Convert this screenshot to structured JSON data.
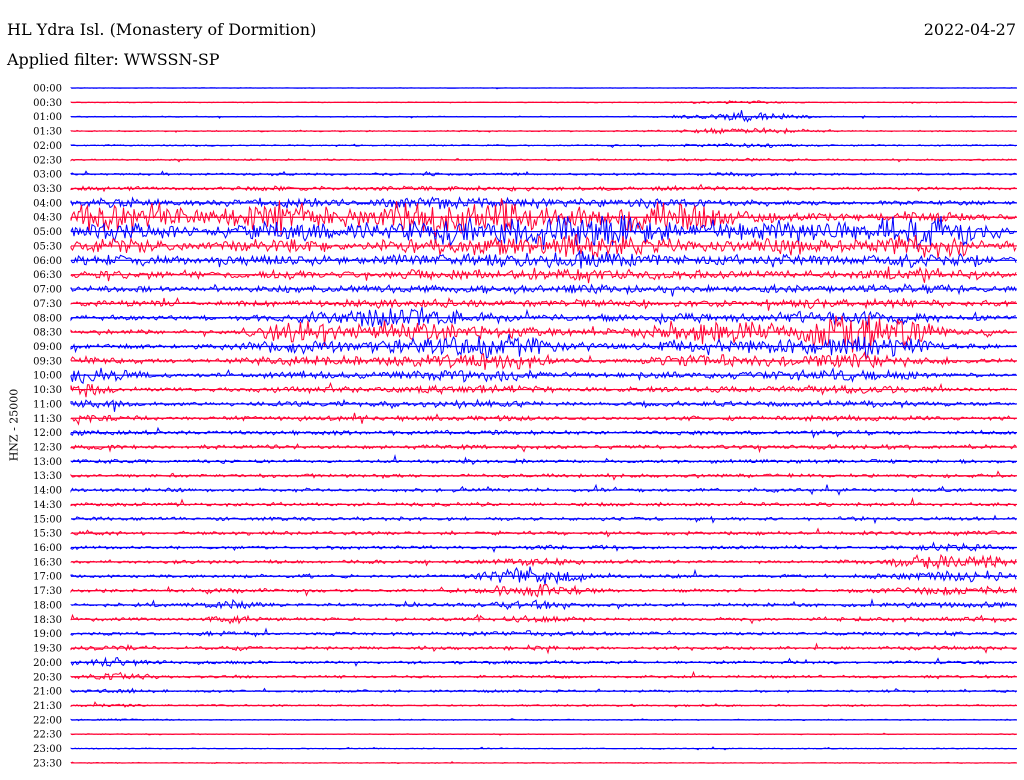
{
  "header": {
    "station": "HL Ydra Isl. (Monastery of Dormition)",
    "filter": "Applied filter: WWSSN-SP",
    "date": "2022-04-27"
  },
  "chart_data": {
    "type": "helicorder",
    "title": "HL Ydra Isl. (Monastery of Dormition)",
    "ylabel": "HNZ - 25000",
    "trace_colors": [
      "#0000ff",
      "#ff0033"
    ],
    "time_labels": [
      "00:00",
      "00:30",
      "01:00",
      "01:30",
      "02:00",
      "02:30",
      "03:00",
      "03:30",
      "04:00",
      "04:30",
      "05:00",
      "05:30",
      "06:00",
      "06:30",
      "07:00",
      "07:30",
      "08:00",
      "08:30",
      "09:00",
      "09:30",
      "10:00",
      "10:30",
      "11:00",
      "11:30",
      "12:00",
      "12:30",
      "13:00",
      "13:30",
      "14:00",
      "14:30",
      "15:00",
      "15:30",
      "16:00",
      "16:30",
      "17:00",
      "17:30",
      "18:00",
      "18:30",
      "19:00",
      "19:30",
      "20:00",
      "20:30",
      "21:00",
      "21:30",
      "22:00",
      "22:30",
      "23:00",
      "23:30"
    ],
    "noise_levels": [
      0.3,
      0.5,
      0.6,
      0.8,
      0.9,
      1.0,
      1.2,
      1.4,
      1.6,
      1.9,
      2.2,
      2.4,
      2.6,
      2.6,
      2.4,
      2.4,
      2.4,
      2.4,
      2.4,
      2.4,
      2.3,
      2.3,
      2.2,
      2.2,
      2.2,
      2.2,
      2.1,
      2.1,
      2.1,
      2.1,
      2.1,
      2.1,
      2.0,
      2.0,
      2.0,
      2.0,
      2.0,
      2.0,
      1.9,
      1.9,
      1.7,
      1.6,
      1.4,
      1.1,
      0.7,
      0.5,
      0.6,
      0.5
    ],
    "events": [
      {
        "row": 9,
        "x_frac": 0.055,
        "amplitude": 12,
        "duration": 0.05
      },
      {
        "row": 9,
        "x_frac": 0.225,
        "amplitude": 12,
        "duration": 0.045
      },
      {
        "row": 9,
        "x_frac": 0.366,
        "amplitude": 10,
        "duration": 0.045
      },
      {
        "row": 9,
        "x_frac": 0.451,
        "amplitude": 12,
        "duration": 0.05
      },
      {
        "row": 10,
        "x_frac": 0.543,
        "amplitude": 11,
        "duration": 0.045
      },
      {
        "row": 9,
        "x_frac": 0.625,
        "amplitude": 11,
        "duration": 0.05
      },
      {
        "row": 10,
        "x_frac": 0.762,
        "amplitude": 9,
        "duration": 0.04
      },
      {
        "row": 10,
        "x_frac": 0.905,
        "amplitude": 13,
        "duration": 0.05
      },
      {
        "row": 2,
        "x_frac": 0.71,
        "amplitude": 3.5,
        "duration": 0.04
      },
      {
        "row": 17,
        "x_frac": 0.245,
        "amplitude": 7,
        "duration": 0.04
      },
      {
        "row": 16,
        "x_frac": 0.35,
        "amplitude": 8,
        "duration": 0.045
      },
      {
        "row": 18,
        "x_frac": 0.44,
        "amplitude": 9,
        "duration": 0.05
      },
      {
        "row": 17,
        "x_frac": 0.665,
        "amplitude": 8,
        "duration": 0.045
      },
      {
        "row": 17,
        "x_frac": 0.8,
        "amplitude": 9,
        "duration": 0.05
      },
      {
        "row": 17,
        "x_frac": 0.855,
        "amplitude": 8,
        "duration": 0.045
      },
      {
        "row": 20,
        "x_frac": 0.006,
        "amplitude": 6,
        "duration": 0.04
      },
      {
        "row": 34,
        "x_frac": 0.49,
        "amplitude": 7,
        "duration": 0.035
      },
      {
        "row": 33,
        "x_frac": 0.935,
        "amplitude": 6,
        "duration": 0.045
      },
      {
        "row": 40,
        "x_frac": 0.05,
        "amplitude": 3,
        "duration": 0.025
      },
      {
        "row": 36,
        "x_frac": 0.17,
        "amplitude": 3,
        "duration": 0.02
      }
    ]
  }
}
